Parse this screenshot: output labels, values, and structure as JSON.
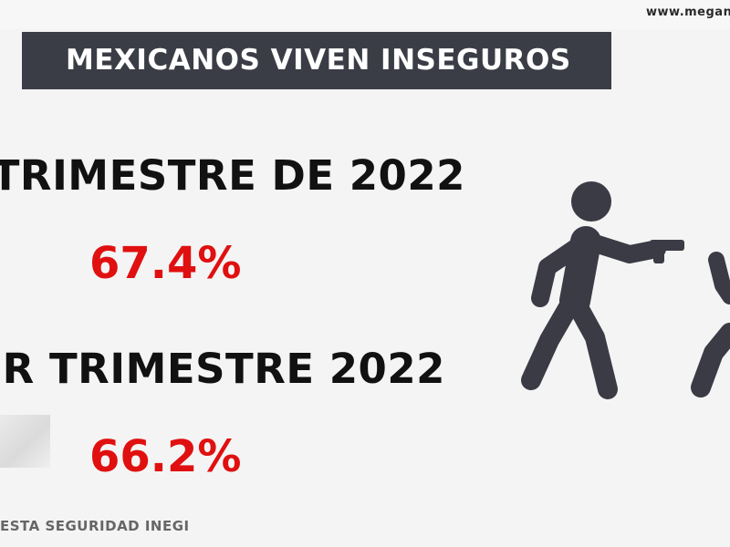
{
  "header": {
    "url": "www.megan"
  },
  "banner": {
    "title": "MEXICANOS VIVEN INSEGUROS"
  },
  "periods": [
    {
      "label": "TRIMESTRE DE 2022",
      "value": "67.4%"
    },
    {
      "label": "R TRIMESTRE 2022",
      "value": "66.2%"
    }
  ],
  "source": "ESTA SEGURIDAD INEGI",
  "colors": {
    "banner_bg": "#3b3d46",
    "value": "#e01010",
    "figure": "#3a3b44"
  },
  "illustration": {
    "icon": "gunman-threatening-person-icon"
  }
}
